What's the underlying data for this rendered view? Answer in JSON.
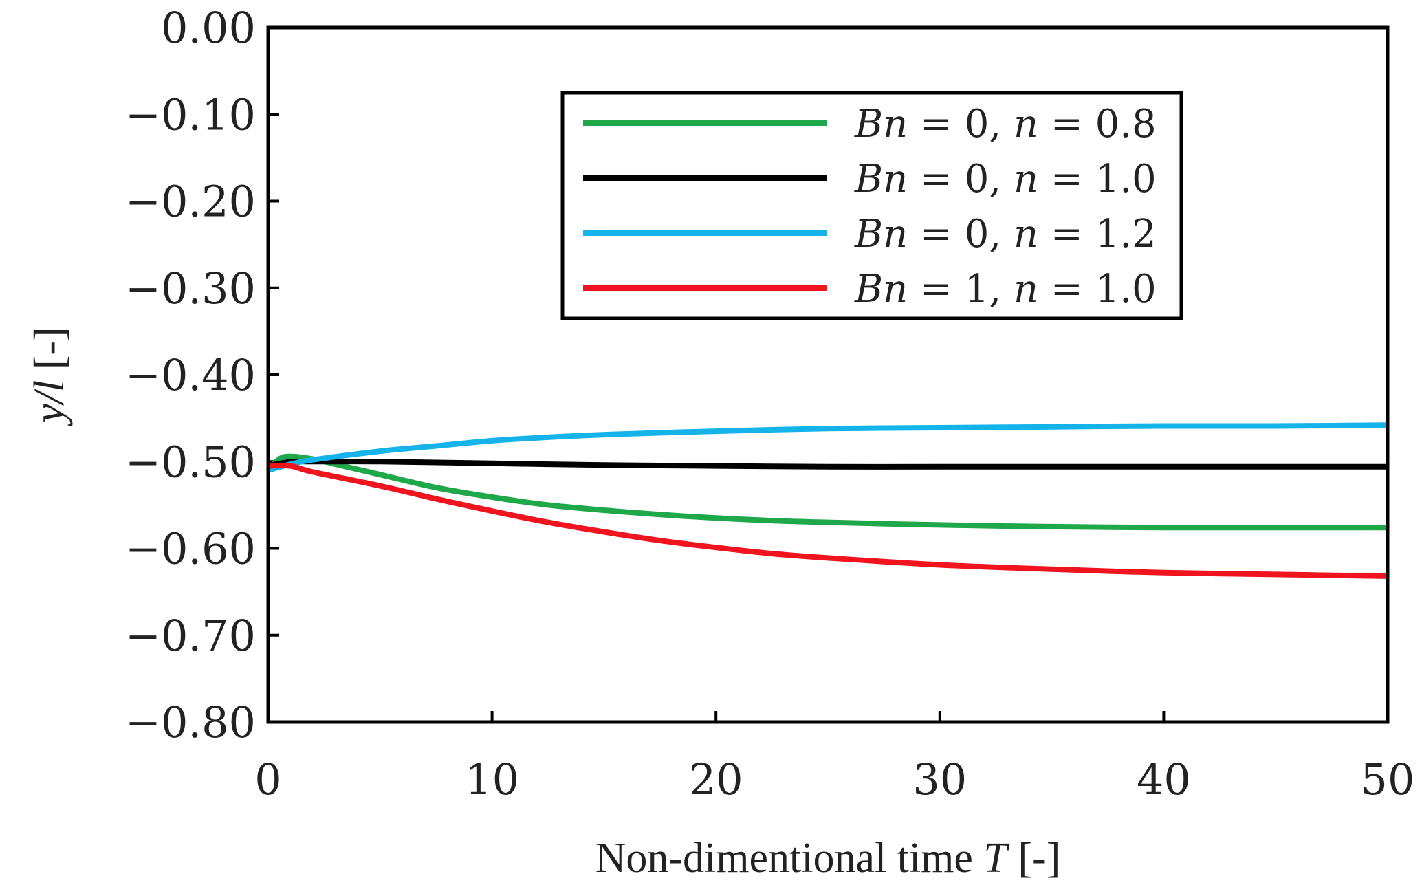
{
  "chart_data": {
    "type": "line",
    "title": "",
    "xlabel": "Non-dimentional time T [-]",
    "xlabel_parts": {
      "pre": "Non-dimentional time ",
      "var": "T",
      "post": " [-]"
    },
    "ylabel": "y/l [-]",
    "ylabel_parts": {
      "var": "y/l",
      "post": " [-]"
    },
    "xlim": [
      0,
      50
    ],
    "ylim": [
      -0.8,
      0.0
    ],
    "xticks": [
      0,
      10,
      20,
      30,
      40,
      50
    ],
    "xtick_labels": [
      "0",
      "10",
      "20",
      "30",
      "40",
      "50"
    ],
    "yticks": [
      0.0,
      -0.1,
      -0.2,
      -0.3,
      -0.4,
      -0.5,
      -0.6,
      -0.7,
      -0.8
    ],
    "ytick_labels": [
      "0.00",
      "−0.10",
      "−0.20",
      "−0.30",
      "−0.40",
      "−0.50",
      "−0.60",
      "−0.70",
      "−0.80"
    ],
    "grid": false,
    "legend_position": "top-right",
    "series": [
      {
        "name": "Bn = 0, n = 0.8",
        "color": "#1fa84a",
        "x": [
          0,
          0.5,
          1,
          2,
          3,
          5,
          7.5,
          10,
          12.5,
          15,
          17.5,
          20,
          22.5,
          25,
          30,
          35,
          40,
          45,
          50
        ],
        "y": [
          -0.51,
          -0.497,
          -0.494,
          -0.497,
          -0.503,
          -0.515,
          -0.53,
          -0.541,
          -0.55,
          -0.556,
          -0.561,
          -0.565,
          -0.568,
          -0.57,
          -0.573,
          -0.575,
          -0.576,
          -0.576,
          -0.576
        ]
      },
      {
        "name": "Bn = 0, n = 1.0",
        "color": "#000000",
        "x": [
          0,
          1,
          2,
          5,
          10,
          15,
          20,
          25,
          30,
          35,
          40,
          45,
          50
        ],
        "y": [
          -0.505,
          -0.5,
          -0.5,
          -0.5,
          -0.502,
          -0.504,
          -0.505,
          -0.506,
          -0.506,
          -0.506,
          -0.506,
          -0.506,
          -0.506
        ]
      },
      {
        "name": "Bn = 0, n = 1.2",
        "color": "#14b3ea",
        "x": [
          0,
          1,
          2,
          5,
          7.5,
          10,
          12.5,
          15,
          20,
          25,
          30,
          35,
          40,
          45,
          50
        ],
        "y": [
          -0.51,
          -0.503,
          -0.498,
          -0.488,
          -0.482,
          -0.476,
          -0.472,
          -0.469,
          -0.465,
          -0.462,
          -0.461,
          -0.46,
          -0.459,
          -0.459,
          -0.458
        ]
      },
      {
        "name": "Bn = 1, n = 1.0",
        "color": "#f0141e",
        "x": [
          0,
          1,
          2,
          5,
          7.5,
          10,
          12.5,
          15,
          17.5,
          20,
          22.5,
          25,
          30,
          35,
          40,
          45,
          50
        ],
        "y": [
          -0.505,
          -0.505,
          -0.512,
          -0.528,
          -0.543,
          -0.557,
          -0.57,
          -0.581,
          -0.591,
          -0.599,
          -0.606,
          -0.611,
          -0.619,
          -0.624,
          -0.628,
          -0.63,
          -0.632
        ]
      }
    ],
    "legend_entries": [
      {
        "var1": "Bn",
        "eq1": " = 0, ",
        "var2": "n",
        "eq2": " = 0.8"
      },
      {
        "var1": "Bn",
        "eq1": " = 0, ",
        "var2": "n",
        "eq2": " = 1.0"
      },
      {
        "var1": "Bn",
        "eq1": " = 0, ",
        "var2": "n",
        "eq2": " = 1.2"
      },
      {
        "var1": "Bn",
        "eq1": " = 1, ",
        "var2": "n",
        "eq2": " = 1.0"
      }
    ]
  }
}
